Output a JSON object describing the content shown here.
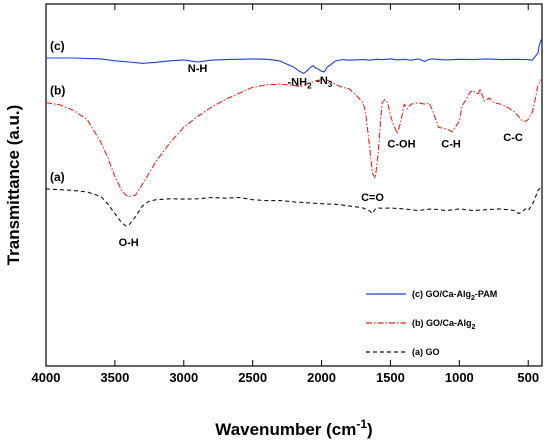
{
  "chart_data": {
    "type": "line",
    "xlabel": "Wavenumber (cm",
    "xlabel_sup": "-1",
    "xlabel_suffix": ")",
    "ylabel": "Transmittance (a.u.)",
    "xlim": [
      4000,
      400
    ],
    "x_reversed": true,
    "ylim": [
      0,
      1
    ],
    "y_ticks_shown": false,
    "x_ticks": [
      4000,
      3500,
      3000,
      2500,
      2000,
      1500,
      1000,
      500
    ],
    "x_tick_labels": [
      "4000",
      "3500",
      "3000",
      "2500",
      "2000",
      "1500",
      "1000",
      "500"
    ],
    "legend_position": "bottom-right",
    "grid": false,
    "series": [
      {
        "name": "(c) GO/Ca-Alg2-PAM",
        "name_parts": [
          "(c) GO/Ca-Alg",
          "2",
          "-PAM"
        ],
        "curve_label": "(c)",
        "color": "#1f3fd6",
        "dash": "solid",
        "x": [
          4000,
          3800,
          3600,
          3500,
          3400,
          3300,
          3200,
          3100,
          3000,
          2950,
          2900,
          2850,
          2800,
          2700,
          2600,
          2500,
          2400,
          2350,
          2300,
          2250,
          2200,
          2160,
          2130,
          2100,
          2080,
          2060,
          2040,
          2020,
          2000,
          1980,
          1960,
          1900,
          1850,
          1800,
          1700,
          1650,
          1600,
          1550,
          1500,
          1450,
          1400,
          1350,
          1300,
          1250,
          1230,
          1200,
          1100,
          1000,
          900,
          800,
          700,
          600,
          500,
          470,
          450,
          430,
          420,
          410,
          400
        ],
        "y": [
          0.935,
          0.935,
          0.932,
          0.926,
          0.922,
          0.918,
          0.921,
          0.926,
          0.929,
          0.925,
          0.922,
          0.925,
          0.928,
          0.93,
          0.931,
          0.932,
          0.931,
          0.929,
          0.925,
          0.915,
          0.905,
          0.892,
          0.885,
          0.895,
          0.905,
          0.91,
          0.902,
          0.898,
          0.892,
          0.89,
          0.905,
          0.925,
          0.93,
          0.928,
          0.93,
          0.928,
          0.931,
          0.93,
          0.932,
          0.929,
          0.931,
          0.928,
          0.932,
          0.924,
          0.929,
          0.932,
          0.929,
          0.931,
          0.93,
          0.932,
          0.93,
          0.931,
          0.93,
          0.928,
          0.94,
          0.95,
          0.975,
          0.99,
          1.0
        ]
      },
      {
        "name": "(b) GO/Ca-Alg2",
        "name_parts": [
          "(b) GO/Ca-Alg",
          "2",
          ""
        ],
        "curve_label": "(b)",
        "color": "#e8251f",
        "dash": "dashdot",
        "x": [
          4000,
          3900,
          3800,
          3700,
          3600,
          3550,
          3500,
          3450,
          3420,
          3400,
          3350,
          3300,
          3200,
          3100,
          3000,
          2900,
          2800,
          2700,
          2600,
          2500,
          2400,
          2300,
          2200,
          2150,
          2100,
          2050,
          2000,
          1950,
          1900,
          1850,
          1800,
          1750,
          1700,
          1680,
          1650,
          1630,
          1610,
          1590,
          1570,
          1560,
          1540,
          1520,
          1500,
          1480,
          1450,
          1430,
          1410,
          1400,
          1380,
          1350,
          1300,
          1250,
          1220,
          1200,
          1150,
          1100,
          1070,
          1050,
          1030,
          1000,
          980,
          950,
          920,
          900,
          880,
          860,
          850,
          830,
          820,
          800,
          780,
          750,
          700,
          650,
          600,
          560,
          540,
          520,
          500,
          470,
          450,
          430,
          400
        ],
        "y": [
          0.79,
          0.783,
          0.765,
          0.735,
          0.66,
          0.61,
          0.55,
          0.505,
          0.49,
          0.485,
          0.49,
          0.525,
          0.6,
          0.66,
          0.71,
          0.745,
          0.775,
          0.8,
          0.82,
          0.84,
          0.848,
          0.85,
          0.846,
          0.842,
          0.852,
          0.86,
          0.865,
          0.862,
          0.85,
          0.84,
          0.835,
          0.815,
          0.79,
          0.76,
          0.64,
          0.56,
          0.545,
          0.62,
          0.74,
          0.79,
          0.8,
          0.79,
          0.75,
          0.72,
          0.69,
          0.72,
          0.76,
          0.785,
          0.77,
          0.785,
          0.79,
          0.785,
          0.79,
          0.77,
          0.71,
          0.705,
          0.7,
          0.695,
          0.71,
          0.73,
          0.78,
          0.8,
          0.825,
          0.83,
          0.82,
          0.82,
          0.835,
          0.81,
          0.795,
          0.8,
          0.805,
          0.79,
          0.785,
          0.775,
          0.76,
          0.74,
          0.73,
          0.73,
          0.735,
          0.76,
          0.8,
          0.845,
          0.87
        ]
      },
      {
        "name": "(a) GO",
        "name_parts": [
          "(a) GO",
          "",
          ""
        ],
        "curve_label": "(a)",
        "color": "#111111",
        "dash": "dashed",
        "x": [
          4000,
          3800,
          3700,
          3600,
          3550,
          3500,
          3450,
          3420,
          3400,
          3350,
          3300,
          3250,
          3200,
          3100,
          3000,
          2900,
          2800,
          2700,
          2600,
          2500,
          2400,
          2300,
          2200,
          2100,
          2000,
          1900,
          1800,
          1750,
          1700,
          1650,
          1630,
          1610,
          1590,
          1550,
          1500,
          1400,
          1300,
          1200,
          1100,
          1050,
          1000,
          900,
          800,
          700,
          600,
          570,
          550,
          520,
          500,
          470,
          450,
          430,
          400
        ],
        "y": [
          0.51,
          0.505,
          0.5,
          0.485,
          0.46,
          0.43,
          0.4,
          0.39,
          0.392,
          0.42,
          0.455,
          0.47,
          0.475,
          0.478,
          0.477,
          0.478,
          0.482,
          0.48,
          0.482,
          0.475,
          0.472,
          0.472,
          0.468,
          0.465,
          0.462,
          0.46,
          0.455,
          0.452,
          0.448,
          0.438,
          0.43,
          0.445,
          0.448,
          0.447,
          0.448,
          0.445,
          0.44,
          0.445,
          0.44,
          0.442,
          0.445,
          0.44,
          0.443,
          0.445,
          0.44,
          0.43,
          0.435,
          0.445,
          0.44,
          0.46,
          0.48,
          0.505,
          0.52
        ]
      }
    ],
    "annotations": [
      {
        "kind": "plain",
        "text": "N-H",
        "x": 2900,
        "y": 0.89
      },
      {
        "kind": "nh2",
        "text": "-NH",
        "sub": "2",
        "x": 2160,
        "y": 0.845
      },
      {
        "kind": "plain",
        "text": "-N",
        "sub": "3",
        "x": 1980,
        "y": 0.85
      },
      {
        "kind": "plain",
        "text": "C-OH",
        "x": 1420,
        "y": 0.645
      },
      {
        "kind": "plain",
        "text": "C-H",
        "x": 1060,
        "y": 0.645
      },
      {
        "kind": "plain",
        "text": "C-C",
        "x": 610,
        "y": 0.665
      },
      {
        "kind": "plain",
        "text": "C=O",
        "x": 1630,
        "y": 0.47
      },
      {
        "kind": "plain",
        "text": "O-H",
        "x": 3400,
        "y": 0.325
      }
    ]
  }
}
